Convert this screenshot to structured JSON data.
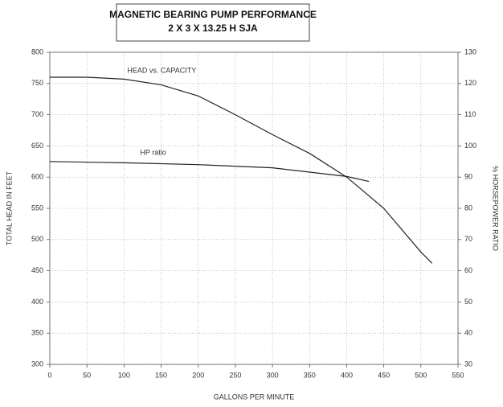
{
  "chart_data": {
    "type": "line",
    "title": "MAGNETIC BEARING PUMP PERFORMANCE",
    "subtitle": "2 X 3 X 13.25 H SJA",
    "x_label": "GALLONS PER MINUTE",
    "y_label": "TOTAL HEAD IN FEET",
    "y2_label": "% HORSEPOWER RATIO",
    "xlim": [
      0,
      550
    ],
    "xticks": [
      0,
      50,
      100,
      150,
      200,
      250,
      300,
      350,
      400,
      450,
      500,
      550
    ],
    "ylim": [
      300,
      800
    ],
    "yticks": [
      300,
      350,
      400,
      450,
      500,
      550,
      600,
      650,
      700,
      750,
      800
    ],
    "y2lim": [
      30,
      130
    ],
    "y2ticks": [
      30,
      40,
      50,
      60,
      70,
      80,
      90,
      100,
      110,
      120,
      130
    ],
    "grid": true,
    "series": [
      {
        "name": "HEAD vs. CAPACITY",
        "color": "#222",
        "x": [
          0,
          50,
          100,
          150,
          200,
          250,
          300,
          350,
          400,
          450,
          500,
          515
        ],
        "values": [
          760,
          760,
          757,
          748,
          730,
          700,
          668,
          638,
          600,
          550,
          480,
          462
        ]
      },
      {
        "name": "HP ratio",
        "color": "#222",
        "axis": "y2",
        "x": [
          0,
          100,
          200,
          300,
          400,
          430
        ],
        "values": [
          95,
          94.6,
          94,
          93,
          90.2,
          88.6
        ]
      }
    ]
  }
}
